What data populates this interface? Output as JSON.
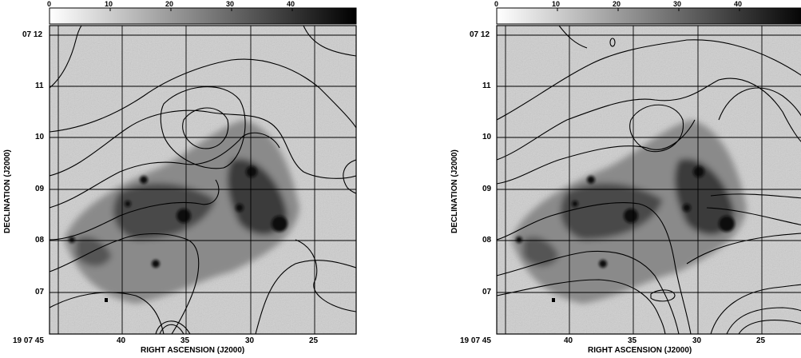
{
  "figures": [
    {
      "id": "left",
      "colorbar_ticks": [
        "0",
        "10",
        "20",
        "30",
        "40"
      ],
      "y_label": "DECLINATION (J2000)",
      "x_label": "RIGHT ASCENSION (J2000)",
      "y_ticks": [
        "07 12",
        "11",
        "10",
        "09",
        "08",
        "07"
      ],
      "x_ticks": [
        "19 07 45",
        "40",
        "35",
        "30",
        "25"
      ]
    },
    {
      "id": "right",
      "colorbar_ticks": [
        "0",
        "10",
        "20",
        "30",
        "40"
      ],
      "y_label": "DECLINATION (J2000)",
      "x_label": "RIGHT ASCENSION (J2000)",
      "y_ticks": [
        "07 12",
        "11",
        "10",
        "09",
        "08",
        "07"
      ],
      "x_ticks": [
        "19 07 45",
        "40",
        "35",
        "30",
        "25"
      ]
    }
  ]
}
